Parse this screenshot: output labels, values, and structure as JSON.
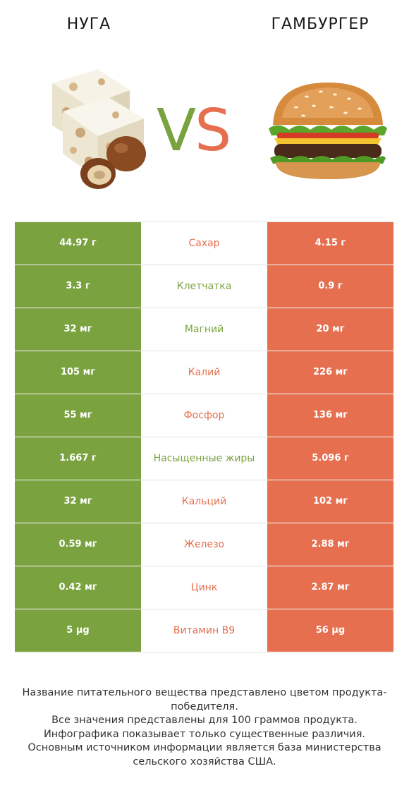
{
  "header": {
    "left_title": "НУГА",
    "right_title": "ГАМБУРГЕР",
    "vs_v": "V",
    "vs_s": "S"
  },
  "colors": {
    "left": "#7aa23f",
    "right": "#e56f4f"
  },
  "rows": [
    {
      "left": "44.97 г",
      "name": "Сахар",
      "right": "4.15 г",
      "winner": "right"
    },
    {
      "left": "3.3 г",
      "name": "Клетчатка",
      "right": "0.9 г",
      "winner": "left"
    },
    {
      "left": "32 мг",
      "name": "Магний",
      "right": "20 мг",
      "winner": "left"
    },
    {
      "left": "105 мг",
      "name": "Калий",
      "right": "226 мг",
      "winner": "right"
    },
    {
      "left": "55 мг",
      "name": "Фосфор",
      "right": "136 мг",
      "winner": "right"
    },
    {
      "left": "1.667 г",
      "name": "Насыщенные жиры",
      "right": "5.096 г",
      "winner": "left"
    },
    {
      "left": "32 мг",
      "name": "Кальций",
      "right": "102 мг",
      "winner": "right"
    },
    {
      "left": "0.59 мг",
      "name": "Железо",
      "right": "2.88 мг",
      "winner": "right"
    },
    {
      "left": "0.42 мг",
      "name": "Цинк",
      "right": "2.87 мг",
      "winner": "right"
    },
    {
      "left": "5 µg",
      "name": "Витамин B9",
      "right": "56 µg",
      "winner": "right"
    }
  ],
  "footer": {
    "line1": "Название питательного вещества представлено цветом продукта-победителя.",
    "line2": "Все значения представлены для 100 граммов продукта.",
    "line3": "Инфографика показывает только существенные различия.",
    "line4": "Основным источником информации является база министерства сельского хозяйства США."
  }
}
